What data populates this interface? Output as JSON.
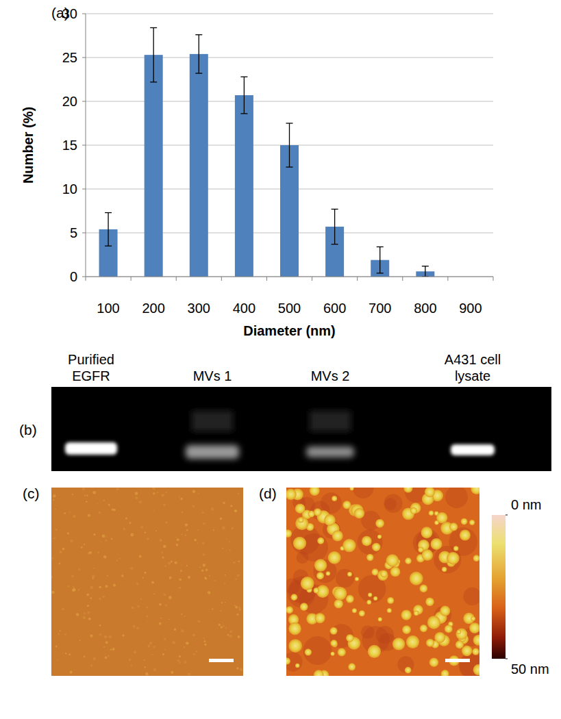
{
  "chart_data": {
    "type": "bar",
    "panel_label": "(a)",
    "x_label": "Diameter (nm)",
    "y_label": "Number (%)",
    "categories": [
      "100",
      "200",
      "300",
      "400",
      "500",
      "600",
      "700",
      "800",
      "900"
    ],
    "values": [
      5.4,
      25.3,
      25.4,
      20.7,
      15.0,
      5.7,
      1.9,
      0.6,
      0
    ],
    "errors": [
      1.9,
      3.1,
      2.2,
      2.1,
      2.5,
      2.0,
      1.5,
      0.6,
      0
    ],
    "color": "#4f81bd",
    "ylim": [
      0,
      30
    ],
    "yticks": [
      0,
      5,
      10,
      15,
      20,
      25,
      30
    ],
    "grid": true
  },
  "blot": {
    "panel_label": "(b)",
    "lanes": [
      "Purified EGFR",
      "MVs 1",
      "MVs 2",
      "A431 cell lysate"
    ]
  },
  "afm": {
    "panel_labels": [
      "(c)",
      "(d)"
    ],
    "colorbar": {
      "range": [
        0,
        50
      ],
      "ticks": [
        {
          "value": 0,
          "label": "0 nm"
        },
        {
          "value": 50,
          "label": "50 nm"
        }
      ]
    }
  }
}
